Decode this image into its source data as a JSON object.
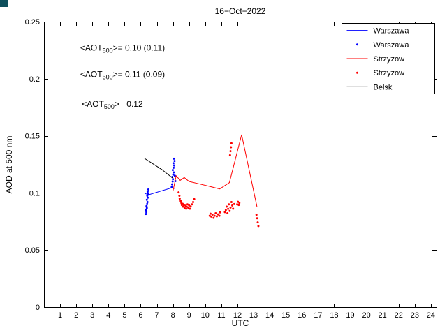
{
  "figure": {
    "background": "#ffffff",
    "corner_artifact_color": "#0e4f5c"
  },
  "chart_data": {
    "type": "line",
    "title": "16−Oct−2022",
    "xlabel": "UTC",
    "ylabel": "AOD at 500 nm",
    "xlim": [
      0,
      24.35
    ],
    "ylim": [
      0,
      0.25
    ],
    "xticks": [
      1,
      2,
      3,
      4,
      5,
      6,
      7,
      8,
      9,
      10,
      11,
      12,
      13,
      14,
      15,
      16,
      17,
      18,
      19,
      20,
      21,
      22,
      23,
      24
    ],
    "yticks": [
      0,
      0.05,
      0.1,
      0.15,
      0.2,
      0.25
    ],
    "ytick_labels": [
      "0",
      "0.05",
      "0.1",
      "0.15",
      "0.2",
      "0.25"
    ],
    "grid": false,
    "legend_position": "top-right",
    "series": [
      {
        "name": "Warszawa",
        "type": "line",
        "color": "#0000ff",
        "points": [
          [
            6.24,
            0.0996
          ],
          [
            6.5,
            0.0984
          ],
          [
            7.93,
            0.1045
          ],
          [
            8.1,
            0.1039
          ]
        ]
      },
      {
        "name": "Warszawa",
        "type": "scatter",
        "color": "#0000ff",
        "points": [
          [
            6.32,
            0.0815
          ],
          [
            6.35,
            0.0832
          ],
          [
            6.33,
            0.085
          ],
          [
            6.38,
            0.0868
          ],
          [
            6.36,
            0.0885
          ],
          [
            6.4,
            0.0902
          ],
          [
            6.42,
            0.092
          ],
          [
            6.38,
            0.094
          ],
          [
            6.44,
            0.0958
          ],
          [
            6.41,
            0.0975
          ],
          [
            6.46,
            0.0992
          ],
          [
            6.43,
            0.101
          ],
          [
            6.47,
            0.103
          ],
          [
            7.92,
            0.105
          ],
          [
            7.95,
            0.1075
          ],
          [
            7.98,
            0.11
          ],
          [
            8.0,
            0.112
          ],
          [
            7.96,
            0.114
          ],
          [
            8.02,
            0.116
          ],
          [
            8.05,
            0.118
          ],
          [
            7.99,
            0.12
          ],
          [
            8.04,
            0.122
          ],
          [
            8.08,
            0.124
          ],
          [
            8.03,
            0.126
          ],
          [
            8.1,
            0.128
          ],
          [
            8.06,
            0.13
          ],
          [
            8.12,
            0.115
          ],
          [
            8.15,
            0.1103
          ]
        ]
      },
      {
        "name": "Strzyzow",
        "type": "line",
        "color": "#ff0000",
        "points": [
          [
            8.0,
            0.1015
          ],
          [
            8.2,
            0.115
          ],
          [
            8.45,
            0.111
          ],
          [
            8.7,
            0.1135
          ],
          [
            9.0,
            0.11
          ],
          [
            9.6,
            0.108
          ],
          [
            10.2,
            0.106
          ],
          [
            10.9,
            0.1035
          ],
          [
            11.5,
            0.109
          ],
          [
            12.26,
            0.151
          ],
          [
            13.21,
            0.088
          ]
        ]
      },
      {
        "name": "Strzyzow",
        "type": "scatter",
        "color": "#ff0000",
        "points": [
          [
            8.35,
            0.1005
          ],
          [
            8.4,
            0.0975
          ],
          [
            8.42,
            0.095
          ],
          [
            8.48,
            0.093
          ],
          [
            8.52,
            0.0912
          ],
          [
            8.55,
            0.0895
          ],
          [
            8.6,
            0.0905
          ],
          [
            8.62,
            0.088
          ],
          [
            8.68,
            0.0895
          ],
          [
            8.72,
            0.087
          ],
          [
            8.78,
            0.0888
          ],
          [
            8.82,
            0.0862
          ],
          [
            8.85,
            0.088
          ],
          [
            8.9,
            0.09
          ],
          [
            8.95,
            0.087
          ],
          [
            9.0,
            0.089
          ],
          [
            9.05,
            0.0862
          ],
          [
            9.1,
            0.0882
          ],
          [
            9.18,
            0.09
          ],
          [
            9.25,
            0.092
          ],
          [
            9.32,
            0.0945
          ],
          [
            10.28,
            0.08
          ],
          [
            10.33,
            0.0818
          ],
          [
            10.38,
            0.0792
          ],
          [
            10.45,
            0.081
          ],
          [
            10.52,
            0.0782
          ],
          [
            10.58,
            0.08
          ],
          [
            10.65,
            0.0822
          ],
          [
            10.72,
            0.0795
          ],
          [
            10.8,
            0.0812
          ],
          [
            10.88,
            0.08
          ],
          [
            10.92,
            0.083
          ],
          [
            11.22,
            0.0832
          ],
          [
            11.28,
            0.085
          ],
          [
            11.33,
            0.088
          ],
          [
            11.38,
            0.0822
          ],
          [
            11.42,
            0.086
          ],
          [
            11.47,
            0.09
          ],
          [
            11.52,
            0.0842
          ],
          [
            11.57,
            0.0872
          ],
          [
            11.63,
            0.092
          ],
          [
            11.68,
            0.089
          ],
          [
            11.73,
            0.0862
          ],
          [
            11.8,
            0.0902
          ],
          [
            11.54,
            0.133
          ],
          [
            11.57,
            0.1365
          ],
          [
            11.6,
            0.14
          ],
          [
            11.63,
            0.1435
          ],
          [
            11.98,
            0.09
          ],
          [
            12.03,
            0.0922
          ],
          [
            12.08,
            0.0895
          ],
          [
            12.12,
            0.0912
          ],
          [
            13.18,
            0.0808
          ],
          [
            13.22,
            0.0778
          ],
          [
            13.26,
            0.0742
          ],
          [
            13.3,
            0.071
          ]
        ]
      },
      {
        "name": "Belsk",
        "type": "line",
        "color": "#000000",
        "points": [
          [
            6.24,
            0.1302
          ],
          [
            7.32,
            0.1204
          ],
          [
            7.97,
            0.1131
          ]
        ]
      }
    ],
    "annotations": [
      {
        "pre": "<AOT",
        "sub": "500",
        "post": ">= 0.10 (0.11)",
        "color": "#0000ff",
        "x": 2.25,
        "y": 0.227
      },
      {
        "pre": "<AOT",
        "sub": "500",
        "post": ">= 0.11 (0.09)",
        "color": "#ff0000",
        "x": 2.25,
        "y": 0.204
      },
      {
        "pre": "<AOT",
        "sub": "500",
        "post": ">= 0.12",
        "color": "#000000",
        "x": 2.35,
        "y": 0.178
      }
    ]
  }
}
